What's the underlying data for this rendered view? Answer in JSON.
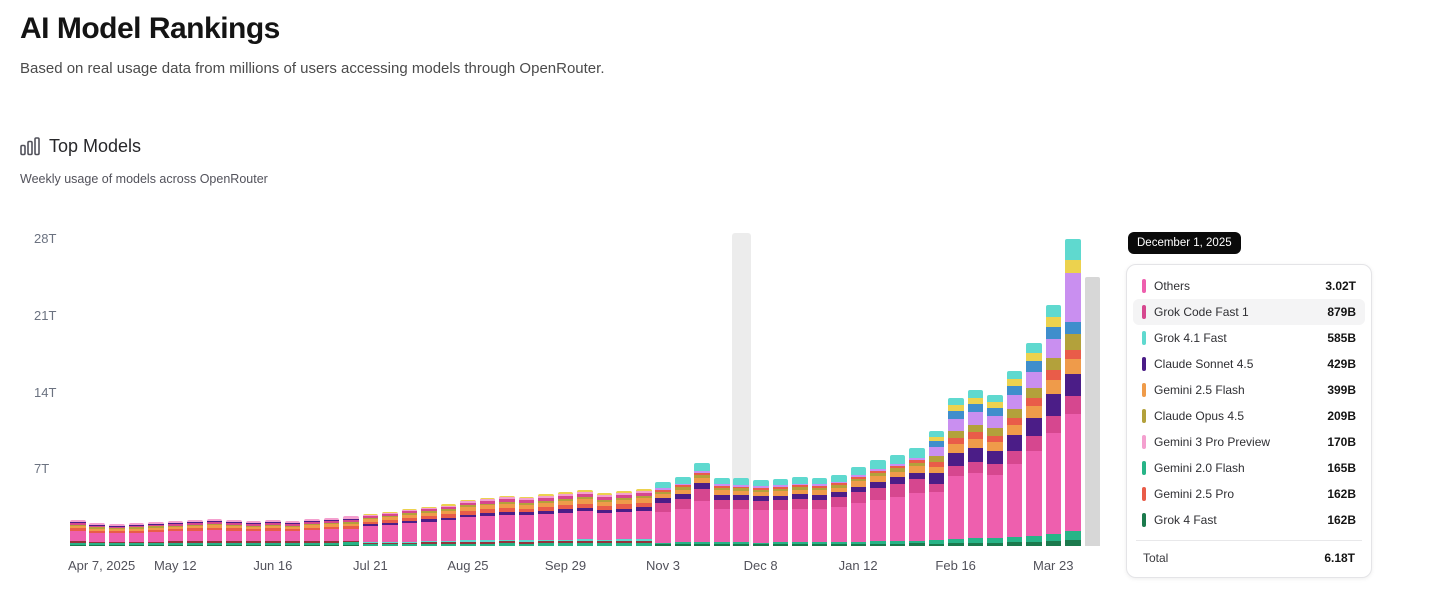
{
  "page": {
    "title": "AI Model Rankings",
    "subtitle": "Based on real usage data from millions of users accessing models through OpenRouter."
  },
  "section": {
    "title": "Top Models",
    "subtitle": "Weekly usage of models across OpenRouter",
    "icon": "bar-chart-icon"
  },
  "tooltip": {
    "date": "December 1, 2025",
    "rows": [
      {
        "label": "Others",
        "value": "3.02T",
        "color": "#ee5fae",
        "highlighted": false
      },
      {
        "label": "Grok Code Fast 1",
        "value": "879B",
        "color": "#d6478f",
        "highlighted": true
      },
      {
        "label": "Grok 4.1 Fast",
        "value": "585B",
        "color": "#5fd9cf",
        "highlighted": false
      },
      {
        "label": "Claude Sonnet 4.5",
        "value": "429B",
        "color": "#4b1d87",
        "highlighted": false
      },
      {
        "label": "Gemini 2.5 Flash",
        "value": "399B",
        "color": "#ef9b4a",
        "highlighted": false
      },
      {
        "label": "Claude Opus 4.5",
        "value": "209B",
        "color": "#b3a13b",
        "highlighted": false
      },
      {
        "label": "Gemini 3 Pro Preview",
        "value": "170B",
        "color": "#f4a0cf",
        "highlighted": false
      },
      {
        "label": "Gemini 2.0 Flash",
        "value": "165B",
        "color": "#27b487",
        "highlighted": false
      },
      {
        "label": "Gemini 2.5 Pro",
        "value": "162B",
        "color": "#e95c49",
        "highlighted": false
      },
      {
        "label": "Grok 4 Fast",
        "value": "162B",
        "color": "#1b7a4d",
        "highlighted": false
      }
    ],
    "total_label": "Total",
    "total_value": "6.18T"
  },
  "chart_data": {
    "type": "bar",
    "subtype": "stacked-weekly-usage",
    "title": "Top Models",
    "subtitle": "Weekly usage of models across OpenRouter",
    "unit": "tokens (T = trillions, B = billions)",
    "y_ticks": [
      "28T",
      "21T",
      "14T",
      "7T"
    ],
    "y_max_T": 28,
    "x_tick_labels": [
      "Apr 7, 2025",
      "May 12",
      "Jun 16",
      "Jul 21",
      "Aug 25",
      "Sep 29",
      "Nov 3",
      "Dec 8",
      "Jan 12",
      "Feb 16",
      "Mar 23"
    ],
    "x_tick_every": 5,
    "hover_index": 34,
    "hovered_week": {
      "date": "December 1, 2025",
      "total_T": 6.18,
      "models": [
        {
          "name": "Others",
          "value": "3.02T"
        },
        {
          "name": "Grok Code Fast 1",
          "value": "879B"
        },
        {
          "name": "Grok 4.1 Fast",
          "value": "585B"
        },
        {
          "name": "Claude Sonnet 4.5",
          "value": "429B"
        },
        {
          "name": "Gemini 2.5 Flash",
          "value": "399B"
        },
        {
          "name": "Claude Opus 4.5",
          "value": "209B"
        },
        {
          "name": "Gemini 3 Pro Preview",
          "value": "170B"
        },
        {
          "name": "Gemini 2.0 Flash",
          "value": "165B"
        },
        {
          "name": "Gemini 2.5 Pro",
          "value": "162B"
        },
        {
          "name": "Grok 4 Fast",
          "value": "162B"
        }
      ]
    },
    "palette": {
      "pink": "#ee5fae",
      "magenta": "#d6478f",
      "cyan": "#5fd9cf",
      "purple": "#4b1d87",
      "orange": "#ef9b4a",
      "olive": "#b3a13b",
      "lavender": "#c98ff0",
      "teal": "#27b487",
      "coral": "#e95c49",
      "dgreen": "#1b7a4d",
      "blue": "#3f8ecc",
      "yellow": "#ecd24e",
      "dred": "#96333c",
      "ltpink": "#f4a0cf",
      "gray": "#d7d7d7"
    },
    "profiles": {
      "A": [
        [
          "dgreen",
          0.05
        ],
        [
          "teal",
          0.07
        ],
        [
          "dred",
          0.06
        ],
        [
          "pink",
          0.4
        ],
        [
          "coral",
          0.09
        ],
        [
          "orange",
          0.09
        ],
        [
          "olive",
          0.05
        ],
        [
          "magenta",
          0.06
        ],
        [
          "purple",
          0.05
        ],
        [
          "ltpink",
          0.08
        ]
      ],
      "B": [
        [
          "teal",
          0.05
        ],
        [
          "dred",
          0.04
        ],
        [
          "cyan",
          0.03
        ],
        [
          "pink",
          0.5
        ],
        [
          "purple",
          0.06
        ],
        [
          "coral",
          0.08
        ],
        [
          "orange",
          0.08
        ],
        [
          "olive",
          0.04
        ],
        [
          "magenta",
          0.05
        ],
        [
          "ltpink",
          0.04
        ],
        [
          "yellow",
          0.03
        ]
      ],
      "C": [
        [
          "dgreen",
          0.026
        ],
        [
          "teal",
          0.027
        ],
        [
          "pink",
          0.489
        ],
        [
          "magenta",
          0.142
        ],
        [
          "purple",
          0.069
        ],
        [
          "orange",
          0.065
        ],
        [
          "olive",
          0.034
        ],
        [
          "coral",
          0.026
        ],
        [
          "lavender",
          0.027
        ],
        [
          "cyan",
          0.095
        ]
      ],
      "D": [
        [
          "dgreen",
          0.02
        ],
        [
          "teal",
          0.03
        ],
        [
          "pink",
          0.42
        ],
        [
          "magenta",
          0.07
        ],
        [
          "purple",
          0.09
        ],
        [
          "orange",
          0.06
        ],
        [
          "coral",
          0.04
        ],
        [
          "olive",
          0.05
        ],
        [
          "lavender",
          0.08
        ],
        [
          "blue",
          0.05
        ],
        [
          "yellow",
          0.04
        ],
        [
          "cyan",
          0.05
        ]
      ],
      "E": [
        [
          "dgreen",
          0.02
        ],
        [
          "teal",
          0.03
        ],
        [
          "pink",
          0.38
        ],
        [
          "magenta",
          0.06
        ],
        [
          "purple",
          0.07
        ],
        [
          "orange",
          0.05
        ],
        [
          "coral",
          0.03
        ],
        [
          "olive",
          0.05
        ],
        [
          "blue",
          0.04
        ],
        [
          "lavender",
          0.16
        ],
        [
          "yellow",
          0.04
        ],
        [
          "cyan",
          0.07
        ]
      ],
      "G": [
        [
          "gray",
          1.0
        ]
      ]
    },
    "bars": [
      {
        "t": 2.4,
        "p": "A"
      },
      {
        "t": 2.1,
        "p": "A"
      },
      {
        "t": 2.0,
        "p": "A"
      },
      {
        "t": 2.1,
        "p": "A"
      },
      {
        "t": 2.2,
        "p": "A"
      },
      {
        "t": 2.3,
        "p": "A"
      },
      {
        "t": 2.4,
        "p": "A"
      },
      {
        "t": 2.5,
        "p": "A"
      },
      {
        "t": 2.4,
        "p": "A"
      },
      {
        "t": 2.3,
        "p": "A"
      },
      {
        "t": 2.4,
        "p": "A"
      },
      {
        "t": 2.3,
        "p": "A"
      },
      {
        "t": 2.5,
        "p": "A"
      },
      {
        "t": 2.6,
        "p": "A"
      },
      {
        "t": 2.7,
        "p": "A"
      },
      {
        "t": 2.9,
        "p": "B"
      },
      {
        "t": 3.1,
        "p": "B"
      },
      {
        "t": 3.4,
        "p": "B"
      },
      {
        "t": 3.6,
        "p": "B"
      },
      {
        "t": 3.8,
        "p": "B"
      },
      {
        "t": 4.2,
        "p": "B"
      },
      {
        "t": 4.4,
        "p": "B"
      },
      {
        "t": 4.6,
        "p": "B"
      },
      {
        "t": 4.5,
        "p": "B"
      },
      {
        "t": 4.7,
        "p": "B"
      },
      {
        "t": 4.9,
        "p": "B"
      },
      {
        "t": 5.1,
        "p": "B"
      },
      {
        "t": 4.8,
        "p": "B"
      },
      {
        "t": 5.0,
        "p": "B"
      },
      {
        "t": 5.2,
        "p": "B"
      },
      {
        "t": 5.8,
        "p": "C"
      },
      {
        "t": 6.3,
        "p": "C"
      },
      {
        "t": 7.6,
        "p": "C"
      },
      {
        "t": 6.2,
        "p": "C"
      },
      {
        "t": 6.18,
        "p": "C"
      },
      {
        "t": 6.0,
        "p": "C"
      },
      {
        "t": 6.1,
        "p": "C"
      },
      {
        "t": 6.3,
        "p": "C"
      },
      {
        "t": 6.2,
        "p": "C"
      },
      {
        "t": 6.5,
        "p": "C"
      },
      {
        "t": 7.2,
        "p": "C"
      },
      {
        "t": 7.8,
        "p": "C"
      },
      {
        "t": 8.3,
        "p": "C"
      },
      {
        "t": 8.9,
        "p": "C"
      },
      {
        "t": 10.5,
        "p": "D"
      },
      {
        "t": 13.5,
        "p": "D"
      },
      {
        "t": 14.2,
        "p": "D"
      },
      {
        "t": 13.8,
        "p": "D"
      },
      {
        "t": 16.0,
        "p": "D"
      },
      {
        "t": 18.5,
        "p": "D"
      },
      {
        "t": 22.0,
        "p": "D"
      },
      {
        "t": 28.0,
        "p": "E"
      },
      {
        "t": 24.5,
        "p": "G"
      }
    ]
  }
}
